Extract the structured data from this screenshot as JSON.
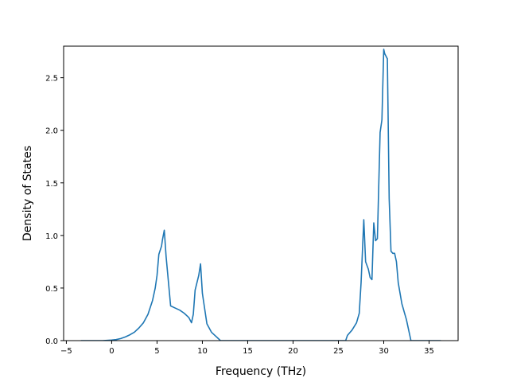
{
  "chart_data": {
    "type": "line",
    "title": "",
    "xlabel": "Frequency (THz)",
    "ylabel": "Density of States",
    "xlim": [
      -5.3,
      38.2
    ],
    "ylim": [
      0,
      2.8
    ],
    "xticks": [
      -5,
      0,
      5,
      10,
      15,
      20,
      25,
      30,
      35
    ],
    "xtick_labels": [
      "−5",
      "0",
      "5",
      "10",
      "15",
      "20",
      "25",
      "30",
      "35"
    ],
    "yticks": [
      0.0,
      0.5,
      1.0,
      1.5,
      2.0,
      2.5
    ],
    "ytick_labels": [
      "0.0",
      "0.5",
      "1.0",
      "1.5",
      "2.0",
      "2.5"
    ],
    "grid": false,
    "legend": null,
    "series": [
      {
        "color": "#1f77b4",
        "x": [
          -3.4,
          -1.0,
          0.0,
          0.5,
          1.0,
          1.5,
          2.0,
          2.5,
          3.0,
          3.5,
          4.0,
          4.5,
          4.8,
          5.0,
          5.2,
          5.5,
          5.6,
          5.8,
          6.0,
          6.5,
          7.0,
          7.5,
          8.0,
          8.5,
          8.8,
          9.0,
          9.2,
          9.6,
          9.8,
          10.0,
          10.5,
          11.0,
          12.0,
          15.0,
          20.0,
          25.0,
          25.8,
          26.0,
          26.5,
          27.0,
          27.3,
          27.5,
          27.8,
          28.0,
          28.3,
          28.5,
          28.7,
          28.9,
          29.1,
          29.3,
          29.6,
          29.8,
          30.0,
          30.1,
          30.4,
          30.6,
          30.8,
          31.0,
          31.2,
          31.4,
          31.6,
          32.0,
          32.5,
          32.8,
          33.0,
          34.0,
          36.3
        ],
        "y": [
          0.0,
          0.0,
          0.005,
          0.01,
          0.02,
          0.035,
          0.055,
          0.08,
          0.12,
          0.17,
          0.25,
          0.38,
          0.5,
          0.62,
          0.82,
          0.9,
          0.96,
          1.05,
          0.8,
          0.33,
          0.31,
          0.29,
          0.26,
          0.22,
          0.17,
          0.25,
          0.48,
          0.62,
          0.73,
          0.45,
          0.16,
          0.08,
          0.0,
          0.0,
          0.0,
          0.0,
          0.0,
          0.05,
          0.1,
          0.17,
          0.26,
          0.55,
          1.15,
          0.75,
          0.68,
          0.6,
          0.58,
          1.12,
          0.95,
          0.97,
          1.98,
          2.1,
          2.77,
          2.73,
          2.68,
          1.35,
          0.85,
          0.83,
          0.83,
          0.75,
          0.55,
          0.35,
          0.2,
          0.08,
          0.0,
          0.0,
          0.0
        ]
      }
    ]
  }
}
